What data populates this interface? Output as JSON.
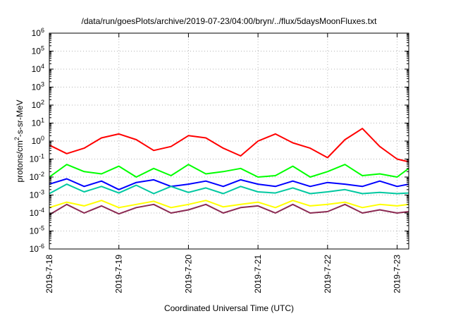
{
  "chart_data": {
    "type": "line",
    "title": "/data/run/goesPlots/archive/2019-07-23/04:00/bryn/../flux/5daysMoonFluxes.txt",
    "xlabel": "Coordinated Universal Time (UTC)",
    "ylabel": "protons/cm2-s-sr-MeV",
    "ylabel_parts": {
      "pre": "protons/cm",
      "sup": "2",
      "post": "-s-sr-MeV"
    },
    "y_scale": "log",
    "ylim": [
      1e-06,
      1000000.0
    ],
    "y_tick_labels": [
      {
        "exp": -6,
        "base": "10",
        "sup": "-6"
      },
      {
        "exp": -5,
        "base": "10",
        "sup": "-5"
      },
      {
        "exp": -4,
        "base": "10",
        "sup": "-4"
      },
      {
        "exp": -3,
        "base": "10",
        "sup": "-3"
      },
      {
        "exp": -2,
        "base": "10",
        "sup": "-2"
      },
      {
        "exp": -1,
        "base": "10",
        "sup": "-1"
      },
      {
        "exp": 0,
        "base": "10",
        "sup": "0"
      },
      {
        "exp": 1,
        "base": "10",
        "sup": "1"
      },
      {
        "exp": 2,
        "base": "10",
        "sup": "2"
      },
      {
        "exp": 3,
        "base": "10",
        "sup": "3"
      },
      {
        "exp": 4,
        "base": "10",
        "sup": "4"
      },
      {
        "exp": 5,
        "base": "10",
        "sup": "5"
      },
      {
        "exp": 6,
        "base": "10",
        "sup": "6"
      }
    ],
    "x_type": "date",
    "xlim": [
      "2019-07-18",
      "2019-07-23 04:00"
    ],
    "x_ticks": [
      "2019-7-18",
      "2019-7-19",
      "2019-7-20",
      "2019-7-21",
      "2019-7-22",
      "2019-7-23"
    ],
    "grid": true,
    "legend": "none",
    "series": [
      {
        "color": "#ff0000",
        "x": [
          "2019-07-18 00:00",
          "2019-07-18 06:00",
          "2019-07-18 12:00",
          "2019-07-18 18:00",
          "2019-07-19 00:00",
          "2019-07-19 06:00",
          "2019-07-19 12:00",
          "2019-07-19 18:00",
          "2019-07-20 00:00",
          "2019-07-20 06:00",
          "2019-07-20 12:00",
          "2019-07-20 18:00",
          "2019-07-21 00:00",
          "2019-07-21 06:00",
          "2019-07-21 12:00",
          "2019-07-21 18:00",
          "2019-07-22 00:00",
          "2019-07-22 06:00",
          "2019-07-22 12:00",
          "2019-07-22 18:00",
          "2019-07-23 00:00",
          "2019-07-23 04:00"
        ],
        "values": [
          0.6,
          0.2,
          0.4,
          1.5,
          2.5,
          1.2,
          0.3,
          0.5,
          2.0,
          1.5,
          0.4,
          0.15,
          1.0,
          2.5,
          0.8,
          0.4,
          0.12,
          1.2,
          5.0,
          0.5,
          0.1,
          0.07
        ]
      },
      {
        "color": "#00ff00",
        "x": [
          "2019-07-18 00:00",
          "2019-07-18 06:00",
          "2019-07-18 12:00",
          "2019-07-18 18:00",
          "2019-07-19 00:00",
          "2019-07-19 06:00",
          "2019-07-19 12:00",
          "2019-07-19 18:00",
          "2019-07-20 00:00",
          "2019-07-20 06:00",
          "2019-07-20 12:00",
          "2019-07-20 18:00",
          "2019-07-21 00:00",
          "2019-07-21 06:00",
          "2019-07-21 12:00",
          "2019-07-21 18:00",
          "2019-07-22 00:00",
          "2019-07-22 06:00",
          "2019-07-22 12:00",
          "2019-07-22 18:00",
          "2019-07-23 00:00",
          "2019-07-23 04:00"
        ],
        "values": [
          0.01,
          0.05,
          0.02,
          0.015,
          0.04,
          0.01,
          0.03,
          0.012,
          0.05,
          0.015,
          0.02,
          0.03,
          0.01,
          0.012,
          0.04,
          0.01,
          0.02,
          0.05,
          0.012,
          0.015,
          0.01,
          0.03
        ]
      },
      {
        "color": "#0000ff",
        "x": [
          "2019-07-18 00:00",
          "2019-07-18 06:00",
          "2019-07-18 12:00",
          "2019-07-18 18:00",
          "2019-07-19 00:00",
          "2019-07-19 06:00",
          "2019-07-19 12:00",
          "2019-07-19 18:00",
          "2019-07-20 00:00",
          "2019-07-20 06:00",
          "2019-07-20 12:00",
          "2019-07-20 18:00",
          "2019-07-21 00:00",
          "2019-07-21 06:00",
          "2019-07-21 12:00",
          "2019-07-21 18:00",
          "2019-07-22 00:00",
          "2019-07-22 06:00",
          "2019-07-22 12:00",
          "2019-07-22 18:00",
          "2019-07-23 00:00",
          "2019-07-23 04:00"
        ],
        "values": [
          0.004,
          0.008,
          0.003,
          0.006,
          0.002,
          0.005,
          0.007,
          0.003,
          0.004,
          0.006,
          0.003,
          0.007,
          0.004,
          0.003,
          0.006,
          0.003,
          0.005,
          0.004,
          0.003,
          0.006,
          0.003,
          0.004
        ]
      },
      {
        "color": "#00c8a0",
        "x": [
          "2019-07-18 00:00",
          "2019-07-18 06:00",
          "2019-07-18 12:00",
          "2019-07-18 18:00",
          "2019-07-19 00:00",
          "2019-07-19 06:00",
          "2019-07-19 12:00",
          "2019-07-19 18:00",
          "2019-07-20 00:00",
          "2019-07-20 06:00",
          "2019-07-20 12:00",
          "2019-07-20 18:00",
          "2019-07-21 00:00",
          "2019-07-21 06:00",
          "2019-07-21 12:00",
          "2019-07-21 18:00",
          "2019-07-22 00:00",
          "2019-07-22 06:00",
          "2019-07-22 12:00",
          "2019-07-22 18:00",
          "2019-07-23 00:00",
          "2019-07-23 04:00"
        ],
        "values": [
          0.0012,
          0.004,
          0.0015,
          0.003,
          0.0013,
          0.0035,
          0.0012,
          0.003,
          0.0014,
          0.0025,
          0.0012,
          0.003,
          0.0015,
          0.0013,
          0.0025,
          0.0012,
          0.0015,
          0.002,
          0.0012,
          0.0014,
          0.0012,
          0.0013
        ]
      },
      {
        "color": "#ffff00",
        "x": [
          "2019-07-18 00:00",
          "2019-07-18 06:00",
          "2019-07-18 12:00",
          "2019-07-18 18:00",
          "2019-07-19 00:00",
          "2019-07-19 06:00",
          "2019-07-19 12:00",
          "2019-07-19 18:00",
          "2019-07-20 00:00",
          "2019-07-20 06:00",
          "2019-07-20 12:00",
          "2019-07-20 18:00",
          "2019-07-21 00:00",
          "2019-07-21 06:00",
          "2019-07-21 12:00",
          "2019-07-21 18:00",
          "2019-07-22 00:00",
          "2019-07-22 06:00",
          "2019-07-22 12:00",
          "2019-07-22 18:00",
          "2019-07-23 00:00",
          "2019-07-23 04:00"
        ],
        "values": [
          0.0002,
          0.0004,
          0.00025,
          0.0005,
          0.0002,
          0.0003,
          0.00045,
          0.0002,
          0.0003,
          0.0005,
          0.00022,
          0.0003,
          0.0004,
          0.0002,
          0.0005,
          0.00025,
          0.0003,
          0.0004,
          0.0002,
          0.0003,
          0.00025,
          0.0003
        ]
      },
      {
        "color": "#8b2a52",
        "x": [
          "2019-07-18 00:00",
          "2019-07-18 06:00",
          "2019-07-18 12:00",
          "2019-07-18 18:00",
          "2019-07-19 00:00",
          "2019-07-19 06:00",
          "2019-07-19 12:00",
          "2019-07-19 18:00",
          "2019-07-20 00:00",
          "2019-07-20 06:00",
          "2019-07-20 12:00",
          "2019-07-20 18:00",
          "2019-07-21 00:00",
          "2019-07-21 06:00",
          "2019-07-21 12:00",
          "2019-07-21 18:00",
          "2019-07-22 00:00",
          "2019-07-22 06:00",
          "2019-07-22 12:00",
          "2019-07-22 18:00",
          "2019-07-23 00:00",
          "2019-07-23 04:00"
        ],
        "values": [
          8e-05,
          0.0003,
          0.0001,
          0.00025,
          9e-05,
          0.0002,
          0.0003,
          0.0001,
          0.00015,
          0.0003,
          0.0001,
          0.0002,
          0.00025,
          0.0001,
          0.0003,
          0.0001,
          0.00012,
          0.0003,
          0.0001,
          0.00015,
          0.0001,
          0.00012
        ]
      }
    ]
  }
}
